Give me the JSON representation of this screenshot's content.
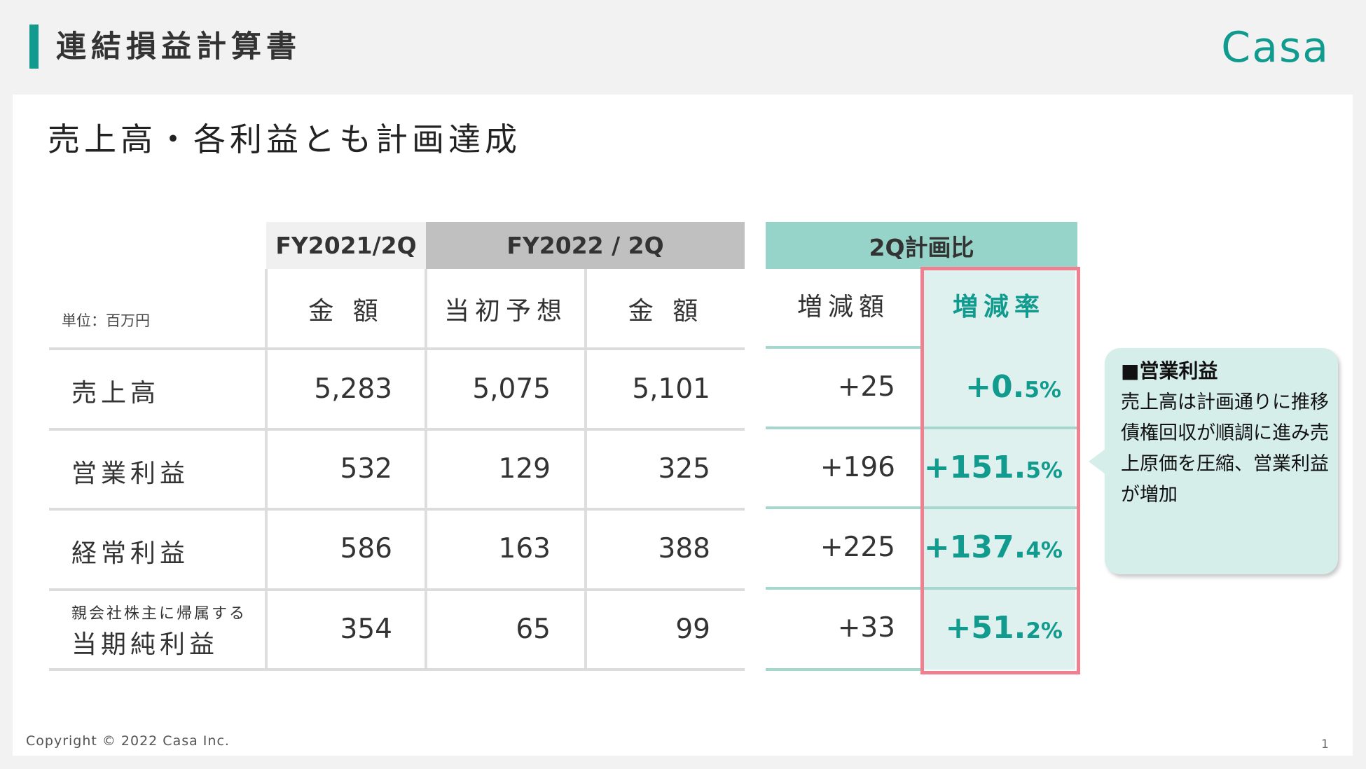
{
  "header": {
    "title": "連結損益計算書",
    "logo": "Casa"
  },
  "subtitle": "売上高・各利益とも計画達成",
  "table": {
    "unit": "単位：百万円",
    "groups": {
      "fy2021": "FY2021/2Q",
      "fy2022": "FY2022 / 2Q",
      "plan": "2Q計画比"
    },
    "columns": {
      "amount_2021": "金 額",
      "forecast": "当初予想",
      "amount_2022": "金 額",
      "change": "増減額",
      "rate": "増減率"
    },
    "rows": [
      {
        "label": "売上高",
        "label_small": "",
        "fy2021": "5,283",
        "forecast": "5,075",
        "fy2022": "5,101",
        "change": "+25",
        "rate_int": "+0.",
        "rate_dec": "5%"
      },
      {
        "label": "営業利益",
        "label_small": "",
        "fy2021": "532",
        "forecast": "129",
        "fy2022": "325",
        "change": "+196",
        "rate_int": "+151.",
        "rate_dec": "5%"
      },
      {
        "label": "経常利益",
        "label_small": "",
        "fy2021": "586",
        "forecast": "163",
        "fy2022": "388",
        "change": "+225",
        "rate_int": "+137.",
        "rate_dec": "4%"
      },
      {
        "label": "当期純利益",
        "label_small": "親会社株主に帰属する",
        "fy2021": "354",
        "forecast": "65",
        "fy2022": "99",
        "change": "+33",
        "rate_int": "+51.",
        "rate_dec": "2%"
      }
    ]
  },
  "callout": {
    "title": "■営業利益",
    "body": "売上高は計画通りに推移 債権回収が順調に進み売上原価を圧縮、営業利益が増加"
  },
  "footer": {
    "copyright": "Copyright © 2022 Casa Inc.",
    "page": "1"
  },
  "colors": {
    "accent": "#119a8e",
    "highlight_border": "#ee8090",
    "plan_header": "#96d3c8"
  }
}
